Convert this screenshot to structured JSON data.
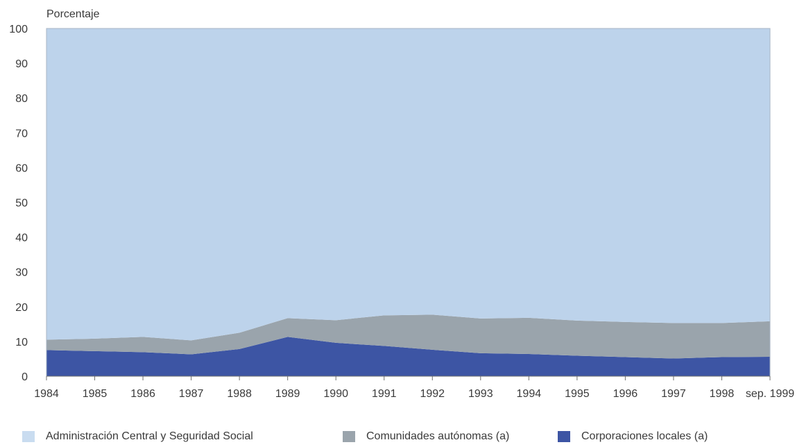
{
  "chart_data": {
    "type": "area",
    "stacked": true,
    "ylabel": "Porcentaje",
    "ylim": [
      0,
      100
    ],
    "yticks": [
      0,
      10,
      20,
      30,
      40,
      50,
      60,
      70,
      80,
      90,
      100
    ],
    "x": [
      "1984",
      "1985",
      "1986",
      "1987",
      "1988",
      "1989",
      "1990",
      "1991",
      "1992",
      "1993",
      "1994",
      "1995",
      "1996",
      "1997",
      "1998",
      "sep. 1999"
    ],
    "series": [
      {
        "name": "Corporaciones locales (a)",
        "color": "#3d55a4",
        "values": [
          7.5,
          7.2,
          6.9,
          6.3,
          7.8,
          11.3,
          9.6,
          8.7,
          7.6,
          6.6,
          6.4,
          5.9,
          5.5,
          5.1,
          5.5,
          5.6
        ]
      },
      {
        "name": "Comunidades autónomas (a)",
        "color": "#9aa4ac",
        "values": [
          3.0,
          3.6,
          4.4,
          4.0,
          4.7,
          5.4,
          6.5,
          8.8,
          10.1,
          10.0,
          10.4,
          10.1,
          10.1,
          10.2,
          9.8,
          10.2
        ]
      },
      {
        "name": "Administración Central y Seguridad Social",
        "color": "#bdd3eb",
        "values": [
          89.5,
          89.2,
          88.7,
          89.7,
          87.5,
          83.3,
          83.9,
          82.5,
          82.3,
          83.4,
          83.2,
          84.0,
          84.4,
          84.7,
          84.7,
          84.2
        ]
      }
    ],
    "legend_position": "bottom",
    "grid": false
  },
  "legend": [
    {
      "label": "Administración Central y Seguridad Social",
      "color": "#c9dcf0"
    },
    {
      "label": "Comunidades autónomas (a)",
      "color": "#9aa4ac"
    },
    {
      "label": "Corporaciones locales (a)",
      "color": "#3d55a4"
    }
  ]
}
